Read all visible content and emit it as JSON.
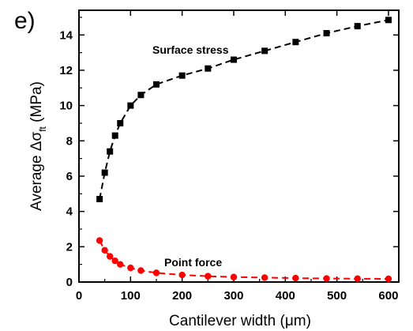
{
  "panel_label": "e)",
  "chart_data": {
    "type": "line",
    "xlabel": "Cantilever width (μm)",
    "ylabel_main": "Average Δσ",
    "ylabel_sub": "ft",
    "ylabel_unit": " (MPa)",
    "xlim": [
      0,
      620
    ],
    "ylim": [
      0,
      15.4
    ],
    "xticks": [
      0,
      100,
      200,
      300,
      400,
      500,
      600
    ],
    "yticks": [
      0,
      2,
      4,
      6,
      8,
      10,
      12,
      14
    ],
    "grid": false,
    "colors": {
      "surface_stress": "#000000",
      "point_force": "#ff0000"
    },
    "series": [
      {
        "name": "Surface stress",
        "marker": "square",
        "color": "#000000",
        "x": [
          40,
          50,
          60,
          70,
          80,
          100,
          120,
          150,
          200,
          250,
          300,
          360,
          420,
          480,
          540,
          600
        ],
        "y": [
          4.7,
          6.2,
          7.4,
          8.3,
          9.0,
          10.0,
          10.6,
          11.2,
          11.7,
          12.1,
          12.6,
          13.1,
          13.6,
          14.1,
          14.5,
          14.85
        ]
      },
      {
        "name": "Point force",
        "marker": "circle",
        "color": "#ff0000",
        "x": [
          40,
          50,
          60,
          70,
          80,
          100,
          120,
          150,
          200,
          250,
          300,
          360,
          420,
          480,
          540,
          600
        ],
        "y": [
          2.35,
          1.8,
          1.45,
          1.2,
          1.0,
          0.8,
          0.65,
          0.52,
          0.4,
          0.33,
          0.28,
          0.25,
          0.22,
          0.2,
          0.19,
          0.18
        ]
      }
    ]
  }
}
